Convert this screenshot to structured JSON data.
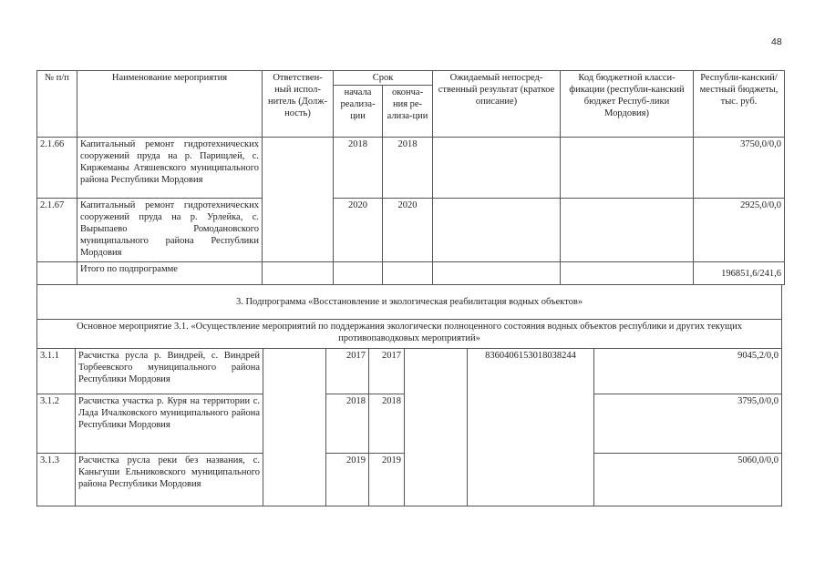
{
  "page_number": "48",
  "header": {
    "num": "№ п/п",
    "name": "Наименование мероприятия",
    "resp": "Ответствен-ный испол-нитель (Долж-ность)",
    "term": "Срок",
    "start": "начала реализа-ции",
    "end": "оконча-ния ре-ализа-ции",
    "result": "Ожидаемый непосред-ственный результат (краткое описание)",
    "kbk": "Код бюджетной класси-фикации (республи-канский бюджет Респуб-лики Мордовия)",
    "budget": "Республи-канский/местный бюджеты, тыс. руб."
  },
  "rows_top": [
    {
      "num": "2.1.66",
      "name": "Капитальный ремонт гидротехнических сооружений пруда на р. Парищлей, с. Киржеманы Атяшевского муниципального района Республики Мордовия",
      "start": "2018",
      "end": "2018",
      "budget": "3750,0/0,0"
    },
    {
      "num": "2.1.67",
      "name": "Капитальный ремонт гидротехнических сооружений пруда на р. Урлейка, с. Вырыпаево Ромодановского муниципального района Республики Мордовия",
      "start": "2020",
      "end": "2020",
      "budget": "2925,0/0,0"
    }
  ],
  "total": {
    "label": "Итого по подпрограмме",
    "budget": "196851,6/241,6"
  },
  "subprogram": "3. Подпрограмма «Восстановление и экологическая реабилитация водных объектов»",
  "main_event": "Основное мероприятие 3.1. «Осуществление мероприятий по поддержания экологически полноценного состояния водных объектов республики и других текущих противопаводковых мероприятий»",
  "kbk_3": "83604061530180З8244",
  "rows_bottom": [
    {
      "num": "3.1.1",
      "name": "Расчистка русла р. Виндрей, с. Виндрей Торбеевского муниципального района Республики Мордовия",
      "start": "2017",
      "end": "2017",
      "budget": "9045,2/0,0"
    },
    {
      "num": "3.1.2",
      "name": "Расчистка участка р. Куря на территории с. Лада Ичалковского муниципального района Республики Мордовия",
      "start": "2018",
      "end": "2018",
      "budget": "3795,0/0,0"
    },
    {
      "num": "3.1.3",
      "name": "Расчистка русла реки без названия, с. Каньгуши Ельниковского муниципального района Республики Мордовия",
      "start": "2019",
      "end": "2019",
      "budget": "5060,0/0,0"
    }
  ]
}
